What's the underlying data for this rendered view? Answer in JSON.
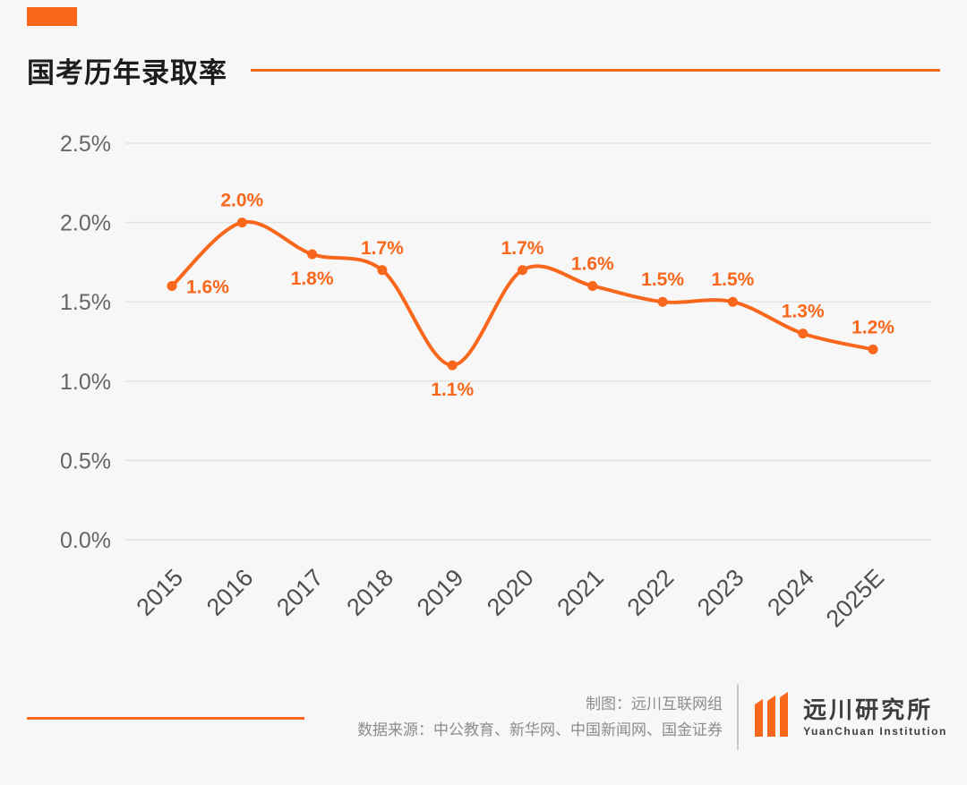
{
  "page": {
    "background": "#f7f7f7",
    "accent": "#f8671b"
  },
  "header": {
    "title": "国考历年录取率"
  },
  "chart_data": {
    "type": "line",
    "title": "国考历年录取率",
    "categories": [
      "2015",
      "2016",
      "2017",
      "2018",
      "2019",
      "2020",
      "2021",
      "2022",
      "2023",
      "2024",
      "2025E"
    ],
    "values": [
      1.6,
      2.0,
      1.8,
      1.7,
      1.1,
      1.7,
      1.6,
      1.5,
      1.5,
      1.3,
      1.2
    ],
    "point_labels": [
      "1.6%",
      "2.0%",
      "1.8%",
      "1.7%",
      "1.1%",
      "1.7%",
      "1.6%",
      "1.5%",
      "1.5%",
      "1.3%",
      "1.2%"
    ],
    "label_positions": [
      "right",
      "above",
      "below",
      "above",
      "below",
      "above",
      "above",
      "above",
      "above",
      "above",
      "above"
    ],
    "xlabel": "",
    "ylabel": "",
    "ylim": [
      0,
      2.5
    ],
    "yticks": [
      "0.0%",
      "0.5%",
      "1.0%",
      "1.5%",
      "2.0%",
      "2.5%"
    ],
    "ytick_values": [
      0,
      0.5,
      1.0,
      1.5,
      2.0,
      2.5
    ],
    "grid": true,
    "legend": "none",
    "line_color": "#f8671b",
    "line_style": "smooth",
    "markers": true
  },
  "footer": {
    "credit": "制图：远川互联网组",
    "source": "数据来源：中公教育、新华网、中国新闻网、国金证券",
    "logo_name": "远川研究所",
    "logo_sub": "YuanChuan Institution"
  }
}
